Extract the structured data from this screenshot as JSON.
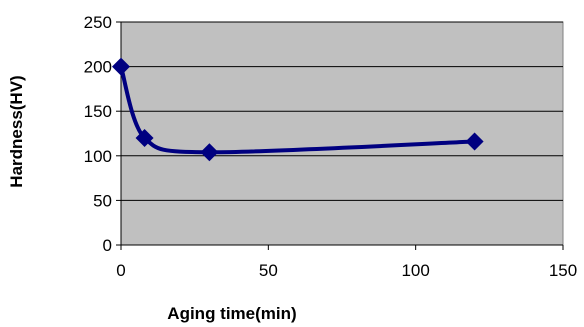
{
  "chart_data": {
    "type": "scatter",
    "xlabel": "Aging time(min)",
    "ylabel": "Hardness(HV)",
    "xlim": [
      0,
      150
    ],
    "ylim": [
      0,
      250
    ],
    "xticks": [
      0,
      50,
      100,
      150
    ],
    "yticks": [
      0,
      50,
      100,
      150,
      200,
      250
    ],
    "grid": "horizontal",
    "smooth": true,
    "marker": "diamond",
    "series": [
      {
        "x": [
          0,
          8,
          30,
          120
        ],
        "y": [
          200,
          120,
          104,
          116
        ]
      }
    ],
    "colors": {
      "plot_background": "#c0c0c0",
      "series": "#000080",
      "gridline": "#000000"
    }
  }
}
